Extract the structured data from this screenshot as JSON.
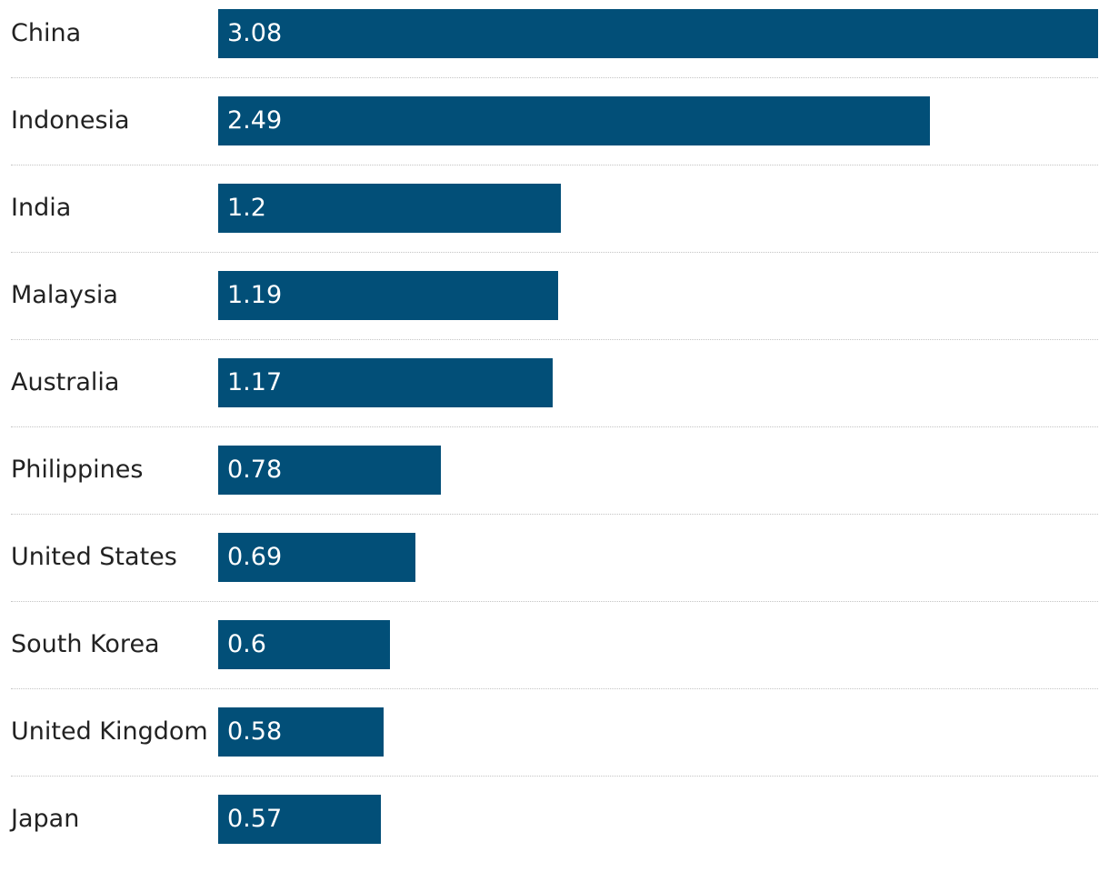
{
  "chart_data": {
    "type": "bar",
    "orientation": "horizontal",
    "title": "",
    "xlabel": "",
    "ylabel": "",
    "categories": [
      "China",
      "Indonesia",
      "India",
      "Malaysia",
      "Australia",
      "Philippines",
      "United States",
      "South Korea",
      "United Kingdom",
      "Japan"
    ],
    "values": [
      3.08,
      2.49,
      1.2,
      1.19,
      1.17,
      0.78,
      0.69,
      0.6,
      0.58,
      0.57
    ],
    "value_labels": [
      "3.08",
      "2.49",
      "1.2",
      "1.19",
      "1.17",
      "0.78",
      "0.69",
      "0.6",
      "0.58",
      "0.57"
    ],
    "xlim": [
      0,
      3.08
    ],
    "grid": false,
    "legend": "none",
    "colors": {
      "bar": "#024f78",
      "label": "#222222",
      "value_label": "#ffffff",
      "divider": "#c4c4c4"
    }
  }
}
